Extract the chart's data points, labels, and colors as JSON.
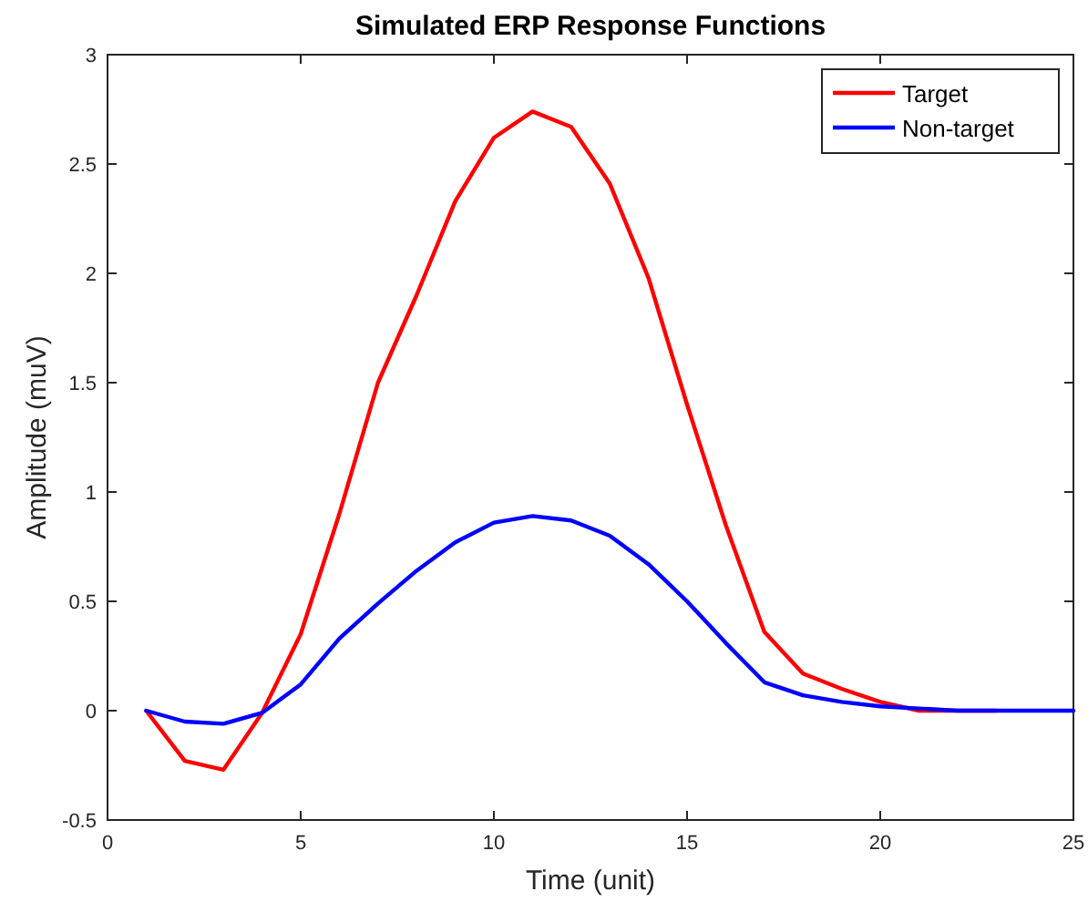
{
  "chart_data": {
    "type": "line",
    "title": "Simulated ERP Response Functions",
    "xlabel": "Time (unit)",
    "ylabel": "Amplitude (muV)",
    "x": [
      1,
      2,
      3,
      4,
      5,
      6,
      7,
      8,
      9,
      10,
      11,
      12,
      13,
      14,
      15,
      16,
      17,
      18,
      19,
      20,
      21,
      22,
      23,
      24,
      25
    ],
    "series": [
      {
        "name": "Target",
        "color": "#ff0000",
        "values": [
          0,
          -0.23,
          -0.27,
          -0.01,
          0.35,
          0.9,
          1.5,
          1.9,
          2.33,
          2.62,
          2.74,
          2.67,
          2.41,
          1.98,
          1.4,
          0.85,
          0.36,
          0.17,
          0.1,
          0.04,
          0,
          0,
          0,
          null,
          null
        ]
      },
      {
        "name": "Non-target",
        "color": "#0000ff",
        "values": [
          0,
          -0.05,
          -0.06,
          -0.01,
          0.12,
          0.33,
          0.49,
          0.64,
          0.77,
          0.86,
          0.89,
          0.87,
          0.8,
          0.67,
          0.5,
          0.31,
          0.13,
          0.07,
          0.04,
          0.02,
          0.01,
          0,
          0,
          0,
          0
        ]
      }
    ],
    "xlim": [
      0,
      25
    ],
    "xticks": [
      0,
      5,
      10,
      15,
      20,
      25
    ],
    "ylim": [
      -0.5,
      3
    ],
    "yticks": [
      -0.5,
      0,
      0.5,
      1,
      1.5,
      2,
      2.5,
      3
    ],
    "grid": false,
    "legend": "top right",
    "line_style": "solid",
    "marker": "none"
  }
}
